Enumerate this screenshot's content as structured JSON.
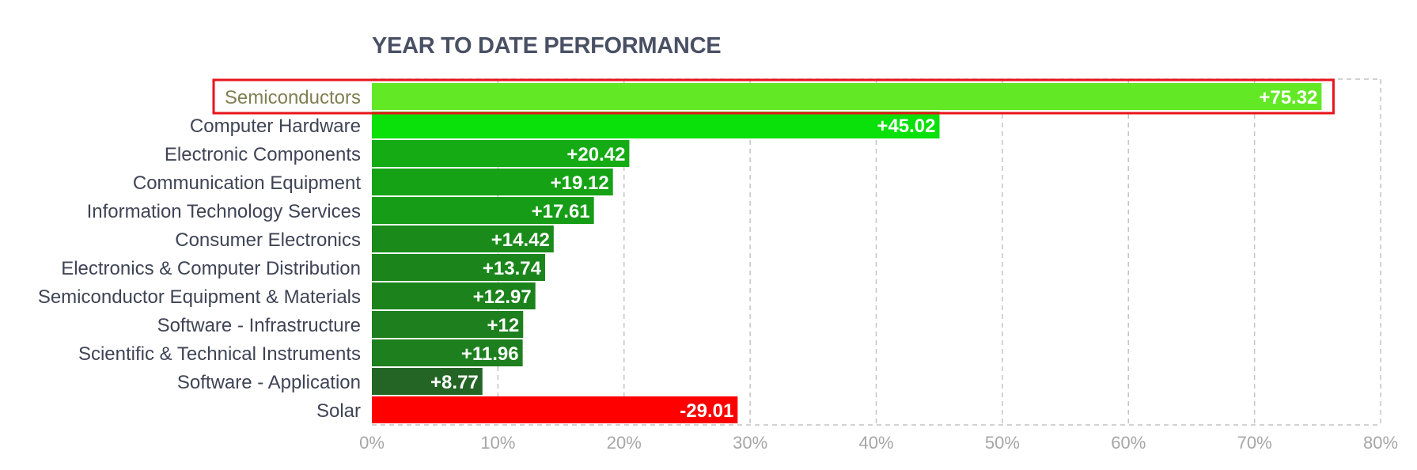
{
  "chart_data": {
    "type": "bar",
    "orientation": "horizontal",
    "title": "YEAR TO DATE PERFORMANCE",
    "xlabel": "",
    "ylabel": "",
    "xlim": [
      0,
      80
    ],
    "grid": true,
    "highlighted_category": "Semiconductors",
    "x_ticks": [
      "0%",
      "10%",
      "20%",
      "30%",
      "40%",
      "50%",
      "60%",
      "70%",
      "80%"
    ],
    "categories": [
      "Semiconductors",
      "Computer Hardware",
      "Electronic Components",
      "Communication Equipment",
      "Information Technology Services",
      "Consumer Electronics",
      "Electronics & Computer Distribution",
      "Semiconductor Equipment & Materials",
      "Software - Infrastructure",
      "Scientific & Technical Instruments",
      "Software - Application",
      "Solar"
    ],
    "values": [
      75.32,
      45.02,
      20.42,
      19.12,
      17.61,
      14.42,
      13.74,
      12.97,
      12,
      11.96,
      8.77,
      -29.01
    ],
    "value_labels": [
      "+75.32",
      "+45.02",
      "+20.42",
      "+19.12",
      "+17.61",
      "+14.42",
      "+13.74",
      "+12.97",
      "+12",
      "+11.96",
      "+8.77",
      "-29.01"
    ],
    "colors": [
      "#63e826",
      "#0ae00a",
      "#15ab15",
      "#15a315",
      "#169c16",
      "#1a8a1a",
      "#1b851b",
      "#1c821c",
      "#1d7f1d",
      "#1d7f1d",
      "#246526",
      "#ff0000"
    ],
    "highlight_color": "#e8141b"
  }
}
